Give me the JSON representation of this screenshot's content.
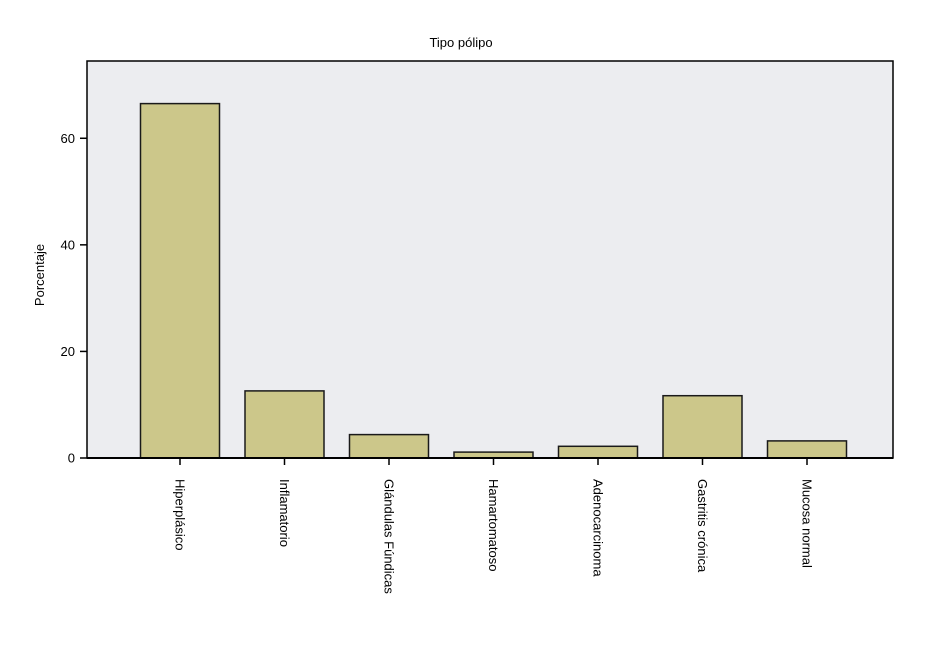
{
  "chart_data": {
    "type": "bar",
    "title": "Tipo pólipo",
    "xlabel": "",
    "ylabel": "Porcentaje",
    "categories": [
      "Hiperplásico",
      "Inflamatorio",
      "Glándulas Fúndicas",
      "Hamartomatoso",
      "Adenocarcinoma",
      "Gastritis crónica",
      "Mucosa normal"
    ],
    "values": [
      66.5,
      12.6,
      4.4,
      1.1,
      2.2,
      11.7,
      3.2
    ],
    "ylim": [
      0,
      74.5
    ],
    "yticks": [
      0,
      20,
      40,
      60
    ],
    "grid": false,
    "colors": {
      "bar_fill": "#CCC78A",
      "bar_stroke": "#1a1a1a",
      "plot_background": "#ECEDF0",
      "axis": "#000000"
    }
  }
}
